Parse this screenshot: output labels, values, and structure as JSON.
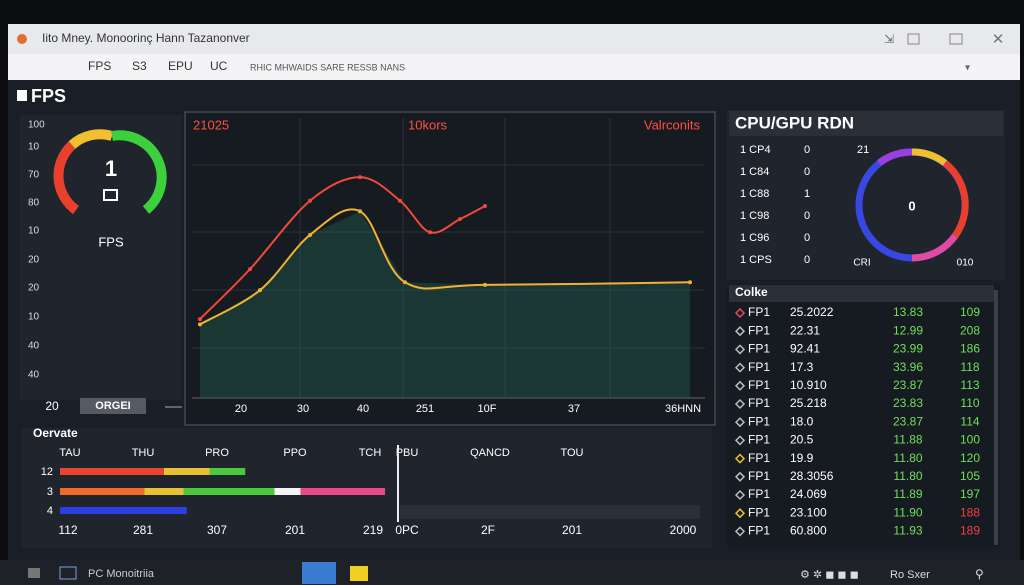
{
  "window": {
    "title": "Iito Mney. Monoorinç Hann Tazanonver",
    "tabs": [
      "FPS",
      "S3",
      "EPU",
      "UC"
    ],
    "address": "RHIC MHWAIDS SARE RESSB NANS"
  },
  "section_title": "FPS",
  "gauge_panel": {
    "labels": [
      "100",
      "10",
      "70",
      "80",
      "10",
      "20",
      "20",
      "10",
      "40",
      "40"
    ],
    "value": "1",
    "caption": "FPS",
    "footer": "20",
    "button": "ORGEI"
  },
  "main_chart": {
    "type": "line",
    "labels": [
      "21025",
      "10kors",
      "Valrconits"
    ],
    "x_labels": [
      "20",
      "30",
      "40",
      "251",
      "10F",
      "37",
      "36HNN"
    ],
    "xlim": [
      0,
      100
    ],
    "ylim": [
      0,
      100
    ],
    "series": [
      {
        "color": "#ef4a3c",
        "x": [
          1,
          11,
          23,
          33,
          41,
          47,
          53,
          58
        ],
        "values": [
          30,
          49,
          75,
          84,
          75,
          63,
          68,
          73
        ]
      },
      {
        "color": "#f0b232",
        "area": true,
        "x": [
          1,
          13,
          23,
          33,
          42,
          58,
          99
        ],
        "values": [
          28,
          41,
          62,
          71,
          44,
          43,
          44
        ]
      }
    ]
  },
  "cpu_panel": {
    "title": "CPU/GPU RDN",
    "rows": [
      [
        "1 CP4",
        "0"
      ],
      [
        "1 C84",
        "0"
      ],
      [
        "1 C88",
        "1"
      ],
      [
        "1 C98",
        "0"
      ],
      [
        "1 C96",
        "0"
      ],
      [
        "1 CPS",
        "0"
      ]
    ],
    "ring": {
      "top_label": "21",
      "center": "0",
      "left_label": "CRI",
      "right_label": "010"
    }
  },
  "table": {
    "title": "Colke",
    "rows": [
      {
        "marker": "#e0505a",
        "name": "FP1",
        "a": "25.2022",
        "b": "13.83",
        "c": "109",
        "c_color": "#6fe05a"
      },
      {
        "marker": "#b8bcc6",
        "name": "FP1",
        "a": "22.31",
        "b": "12.99",
        "c": "208",
        "c_color": "#6fe05a"
      },
      {
        "marker": "#b8bcc6",
        "name": "FP1",
        "a": "92.41",
        "b": "23.99",
        "c": "186",
        "c_color": "#6fe05a"
      },
      {
        "marker": "#b8bcc6",
        "name": "FP1",
        "a": "17.3",
        "b": "33.96",
        "c": "118",
        "c_color": "#6fe05a"
      },
      {
        "marker": "#b8bcc6",
        "name": "FP1",
        "a": "10.910",
        "b": "23.87",
        "c": "113",
        "c_color": "#6fe05a"
      },
      {
        "marker": "#b8bcc6",
        "name": "FP1",
        "a": "25.218",
        "b": "23.83",
        "c": "110",
        "c_color": "#6fe05a"
      },
      {
        "marker": "#b8bcc6",
        "name": "FP1",
        "a": "18.0",
        "b": "23.87",
        "c": "114",
        "c_color": "#6fe05a"
      },
      {
        "marker": "#b8bcc6",
        "name": "FP1",
        "a": "20.5",
        "b": "11.88",
        "c": "100",
        "c_color": "#6fe05a"
      },
      {
        "marker": "#f0c030",
        "name": "FP1",
        "a": "19.9",
        "b": "11.80",
        "c": "120",
        "c_color": "#6fe05a"
      },
      {
        "marker": "#b8bcc6",
        "name": "FP1",
        "a": "28.3056",
        "b": "11.80",
        "c": "105",
        "c_color": "#6fe05a"
      },
      {
        "marker": "#b8bcc6",
        "name": "FP1",
        "a": "24.069",
        "b": "11.89",
        "c": "197",
        "c_color": "#6fe05a"
      },
      {
        "marker": "#f0c030",
        "name": "FP1",
        "a": "23.100",
        "b": "11.90",
        "c": "188",
        "c_color": "#f04040"
      },
      {
        "marker": "#b8bcc6",
        "name": "FP1",
        "a": "60.800",
        "b": "11.93",
        "c": "189",
        "c_color": "#f04040"
      }
    ]
  },
  "bottom_panel": {
    "title": "Oervate",
    "headers": [
      "TAU",
      "THU",
      "PRO",
      "PPO",
      "TCH",
      "PBU",
      "QANCD",
      "TOU"
    ],
    "xlim": [
      0,
      100
    ],
    "bars": [
      {
        "label": "12",
        "segments": [
          {
            "color": "#e8452e",
            "value": 32
          },
          {
            "color": "#e8c030",
            "value": 14
          },
          {
            "color": "#4cc83c",
            "value": 11
          }
        ]
      },
      {
        "label": "3",
        "segments": [
          {
            "color": "#f06a28",
            "value": 26
          },
          {
            "color": "#e8c030",
            "value": 12
          },
          {
            "color": "#4cc83c",
            "value": 28
          },
          {
            "color": "#f4f4f4",
            "value": 8
          },
          {
            "color": "#e84a8a",
            "value": 26
          }
        ]
      },
      {
        "label": "4",
        "segments": [
          {
            "color": "#2a40e0",
            "value": 39
          }
        ]
      }
    ],
    "footer": [
      "112",
      "281",
      "307",
      "201",
      "219",
      "0PC",
      "2F",
      "201",
      "2000"
    ]
  },
  "taskbar": {
    "app": "PC Monoitriia",
    "right": "Ro Sxer"
  }
}
